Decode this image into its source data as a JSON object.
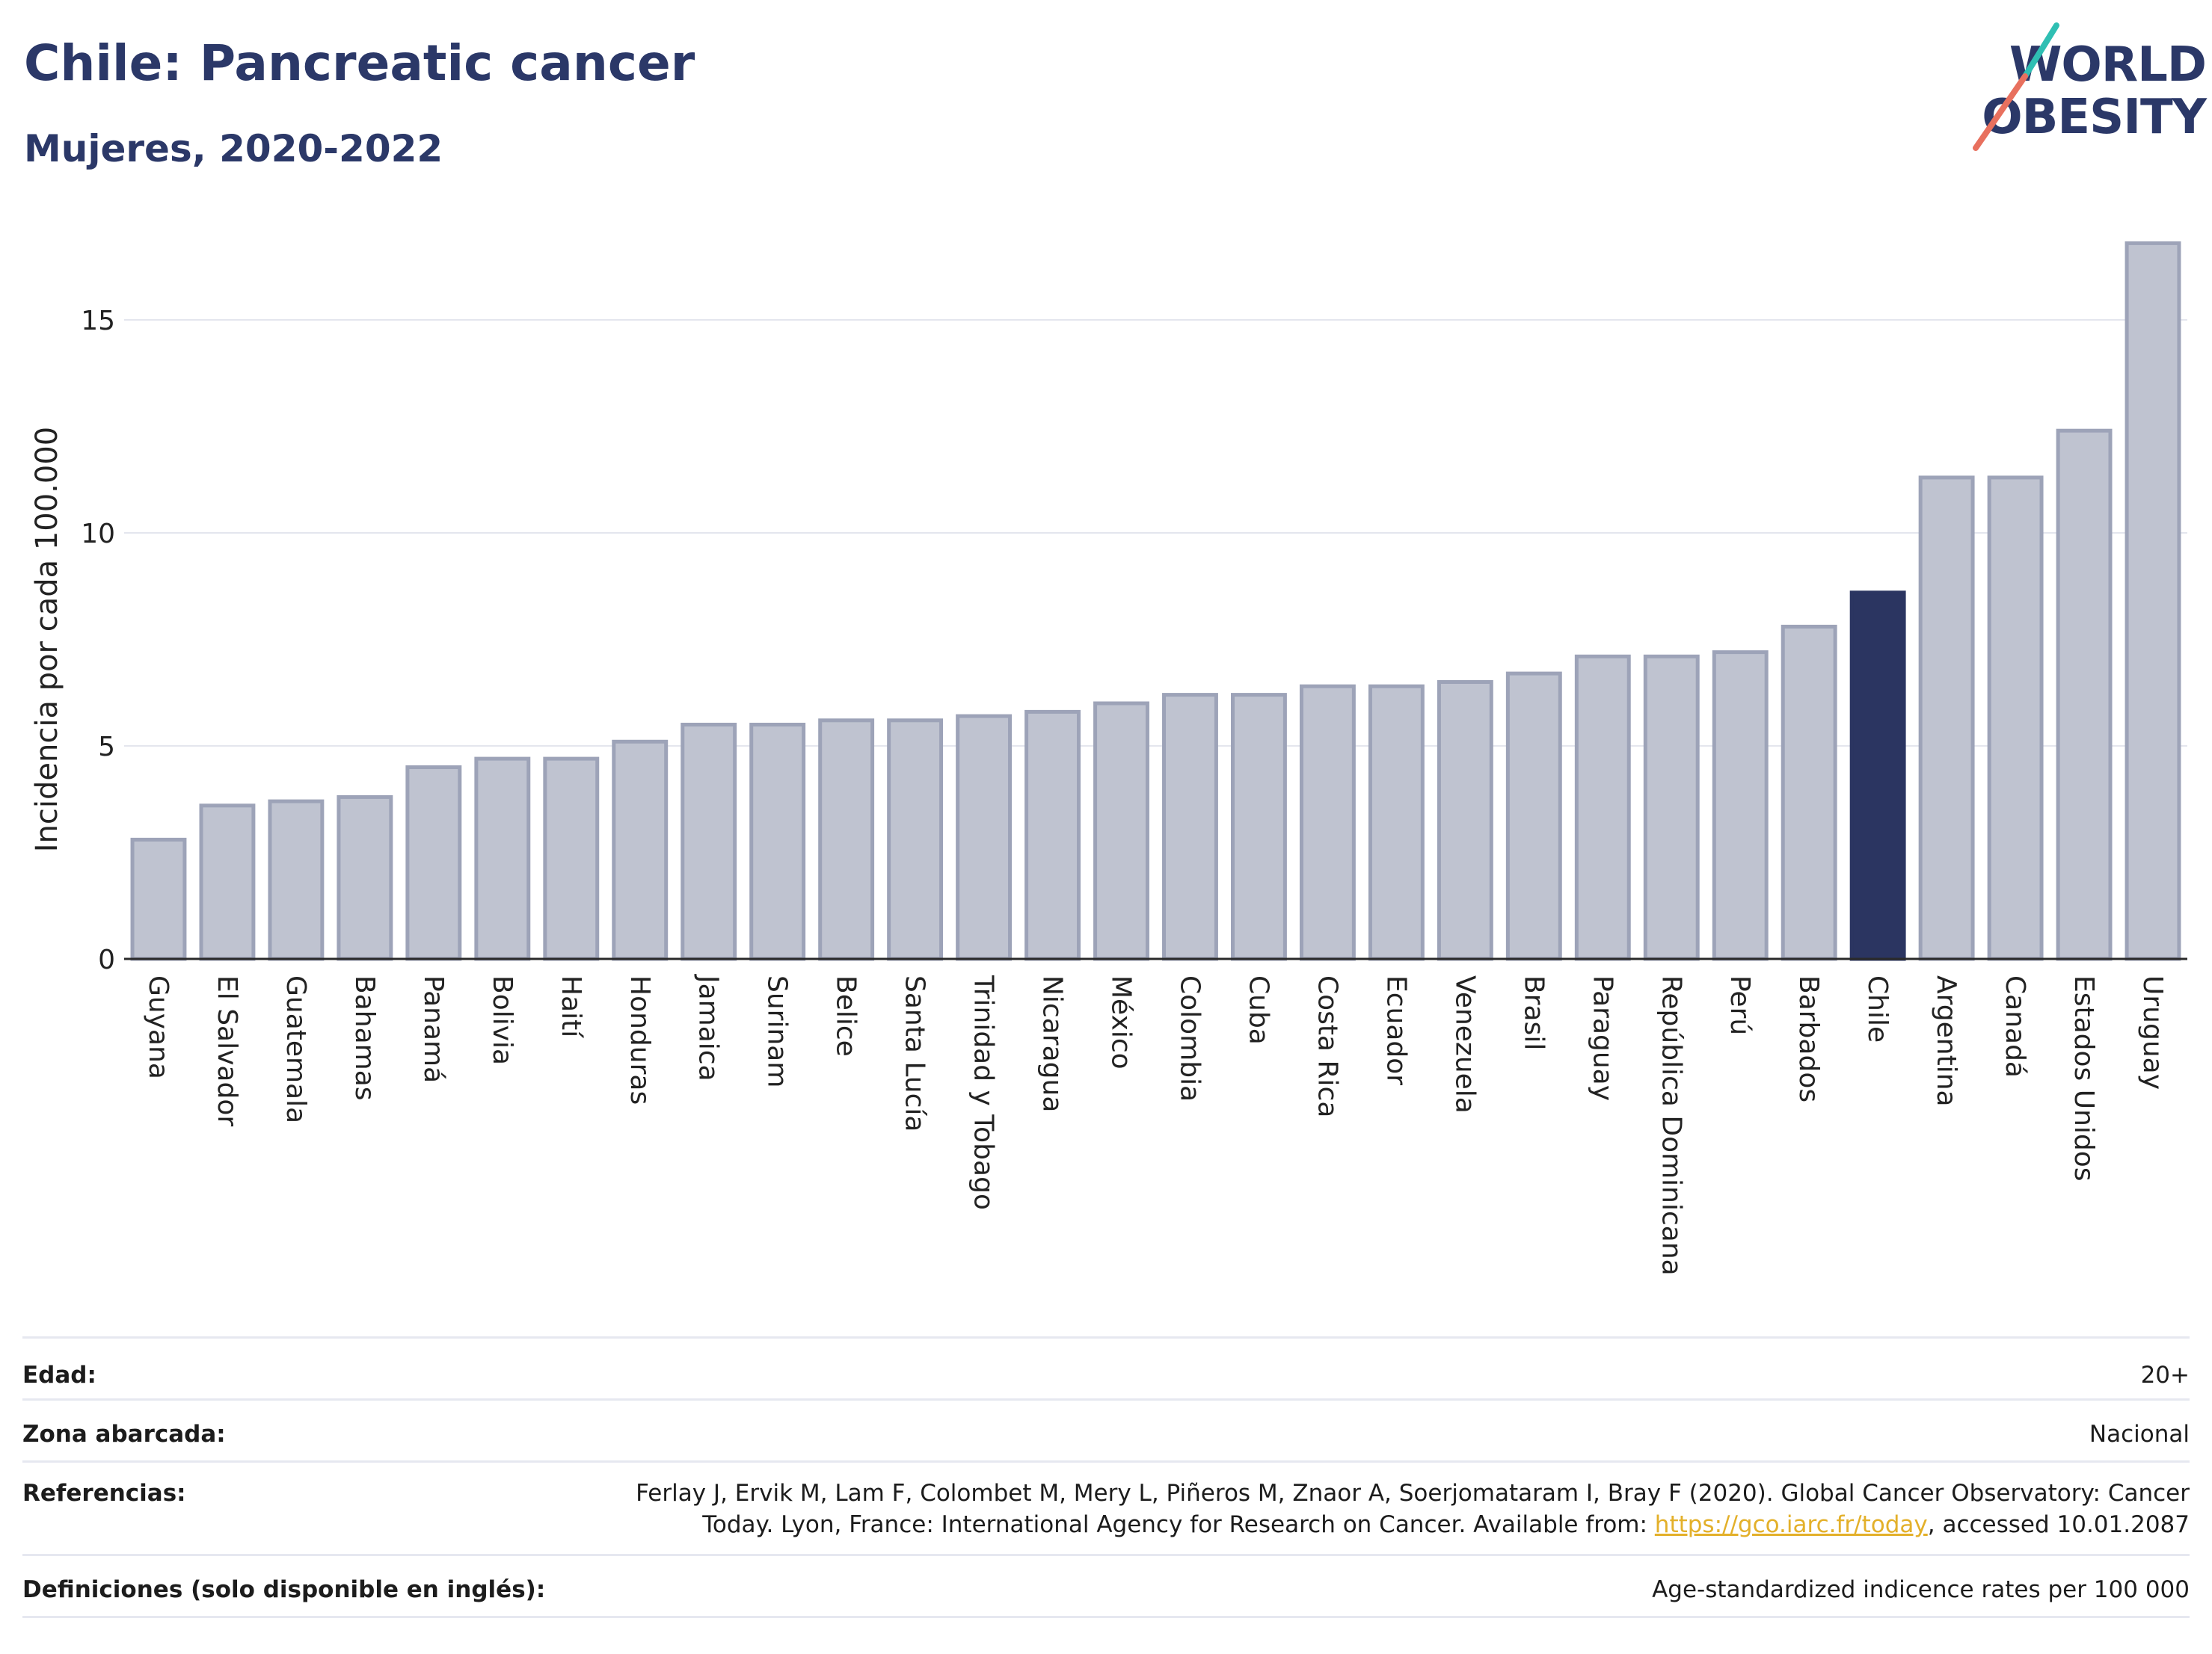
{
  "header": {
    "title": "Chile: Pancreatic cancer",
    "subtitle": "Mujeres, 2020-2022"
  },
  "logo": {
    "line1": "WORLD",
    "line2": "OBESITY",
    "colors": [
      "#2fbfb3",
      "#e8705e"
    ]
  },
  "chart_data": {
    "type": "bar",
    "title": "",
    "xlabel": "",
    "ylabel": "Incidencia por cada 100.000",
    "ylim": [
      0,
      17.3
    ],
    "yticks": [
      0,
      5,
      10,
      15
    ],
    "grid": true,
    "legend": "none",
    "highlight": "Chile",
    "colors": {
      "bar": "#bfc3d0",
      "bar_border": "#9da3b8",
      "highlight": "#2b3561"
    },
    "categories": [
      "Guyana",
      "El Salvador",
      "Guatemala",
      "Bahamas",
      "Panamá",
      "Bolivia",
      "Haití",
      "Honduras",
      "Jamaica",
      "Surinam",
      "Belice",
      "Santa Lucía",
      "Trinidad y Tobago",
      "Nicaragua",
      "México",
      "Colombia",
      "Cuba",
      "Costa Rica",
      "Ecuador",
      "Venezuela",
      "Brasil",
      "Paraguay",
      "República Dominicana",
      "Perú",
      "Barbados",
      "Chile",
      "Argentina",
      "Canadá",
      "Estados Unidos",
      "Uruguay"
    ],
    "values": [
      2.8,
      3.6,
      3.7,
      3.8,
      4.5,
      4.7,
      4.7,
      5.1,
      5.5,
      5.5,
      5.6,
      5.6,
      5.7,
      5.8,
      6.0,
      6.2,
      6.2,
      6.4,
      6.4,
      6.5,
      6.7,
      7.1,
      7.1,
      7.2,
      7.8,
      8.6,
      11.3,
      11.3,
      12.4,
      16.8
    ]
  },
  "footer": {
    "rows": [
      {
        "label": "Edad:",
        "value": "20+"
      },
      {
        "label": "Zona abarcada:",
        "value": "Nacional"
      },
      {
        "label": "Referencias:",
        "value_before": "Ferlay J, Ervik M, Lam F, Colombet M, Mery L, Piñeros M, Znaor A, Soerjomataram I, Bray F (2020). Global Cancer Observatory: Cancer Today. Lyon, France: International Agency for Research on Cancer. Available from: ",
        "link": "https://gco.iarc.fr/today",
        "value_after": ", accessed 10.01.2087"
      },
      {
        "label": "Definiciones (solo disponible en inglés):",
        "value": "Age-standardized indicence rates per 100 000"
      }
    ]
  }
}
